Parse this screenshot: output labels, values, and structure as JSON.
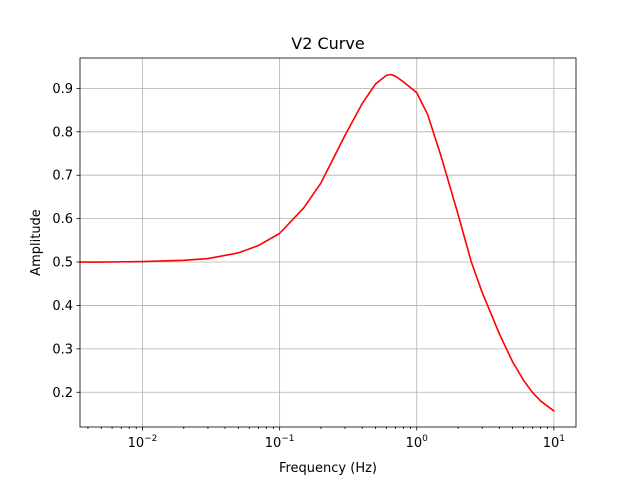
{
  "chart_data": {
    "type": "line",
    "title": "V2 Curve",
    "xlabel": "Frequency (Hz)",
    "ylabel": "Amplitude",
    "xscale": "log",
    "xlim": [
      0.0035,
      14.5
    ],
    "ylim": [
      0.12,
      0.97
    ],
    "grid": true,
    "x_ticks": [
      {
        "value": 0.01,
        "base": "10",
        "exp": "−2"
      },
      {
        "value": 0.1,
        "base": "10",
        "exp": "−1"
      },
      {
        "value": 1,
        "base": "10",
        "exp": "0"
      },
      {
        "value": 10,
        "base": "10",
        "exp": "1"
      }
    ],
    "y_ticks": [
      {
        "value": 0.2,
        "label": "0.2"
      },
      {
        "value": 0.3,
        "label": "0.3"
      },
      {
        "value": 0.4,
        "label": "0.4"
      },
      {
        "value": 0.5,
        "label": "0.5"
      },
      {
        "value": 0.6,
        "label": "0.6"
      },
      {
        "value": 0.7,
        "label": "0.7"
      },
      {
        "value": 0.8,
        "label": "0.8"
      },
      {
        "value": 0.9,
        "label": "0.9"
      }
    ],
    "series": [
      {
        "color": "#ff0000",
        "x": [
          0.0035,
          0.005,
          0.01,
          0.02,
          0.03,
          0.05,
          0.07,
          0.1,
          0.15,
          0.2,
          0.3,
          0.4,
          0.5,
          0.6,
          0.65,
          0.7,
          0.8,
          1.0,
          1.2,
          1.5,
          2.0,
          2.5,
          3.0,
          4.0,
          5.0,
          6.0,
          7.0,
          8.0,
          10.0
        ],
        "y": [
          0.5,
          0.5,
          0.501,
          0.504,
          0.508,
          0.521,
          0.538,
          0.566,
          0.625,
          0.682,
          0.792,
          0.865,
          0.91,
          0.93,
          0.932,
          0.928,
          0.915,
          0.89,
          0.84,
          0.745,
          0.61,
          0.5,
          0.43,
          0.335,
          0.27,
          0.228,
          0.199,
          0.18,
          0.157
        ]
      }
    ]
  }
}
